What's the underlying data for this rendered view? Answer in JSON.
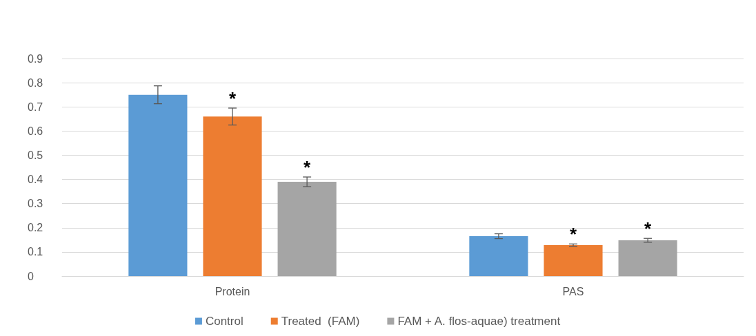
{
  "chart_data": {
    "type": "bar",
    "categories": [
      "Protein",
      "PAS"
    ],
    "series": [
      {
        "name": "Control",
        "color": "#5b9bd5",
        "values": [
          0.75,
          0.165
        ],
        "errors": [
          0.037,
          0.01
        ]
      },
      {
        "name": "Treated  (FAM)",
        "color": "#ed7d31",
        "values": [
          0.66,
          0.128
        ],
        "errors": [
          0.035,
          0.005
        ],
        "value_labels": [
          "*",
          "*"
        ]
      },
      {
        "name": "FAM + A. flos-aquae) treatment",
        "color": "#a5a5a5",
        "values": [
          0.39,
          0.148
        ],
        "errors": [
          0.02,
          0.008
        ],
        "value_labels": [
          "*",
          "*"
        ]
      }
    ],
    "ylim": [
      0,
      0.9
    ],
    "yticks": [
      0,
      0.1,
      0.2,
      0.3,
      0.4,
      0.5,
      0.6,
      0.7,
      0.8,
      0.9
    ],
    "grid": "y",
    "legend": "bottom"
  }
}
